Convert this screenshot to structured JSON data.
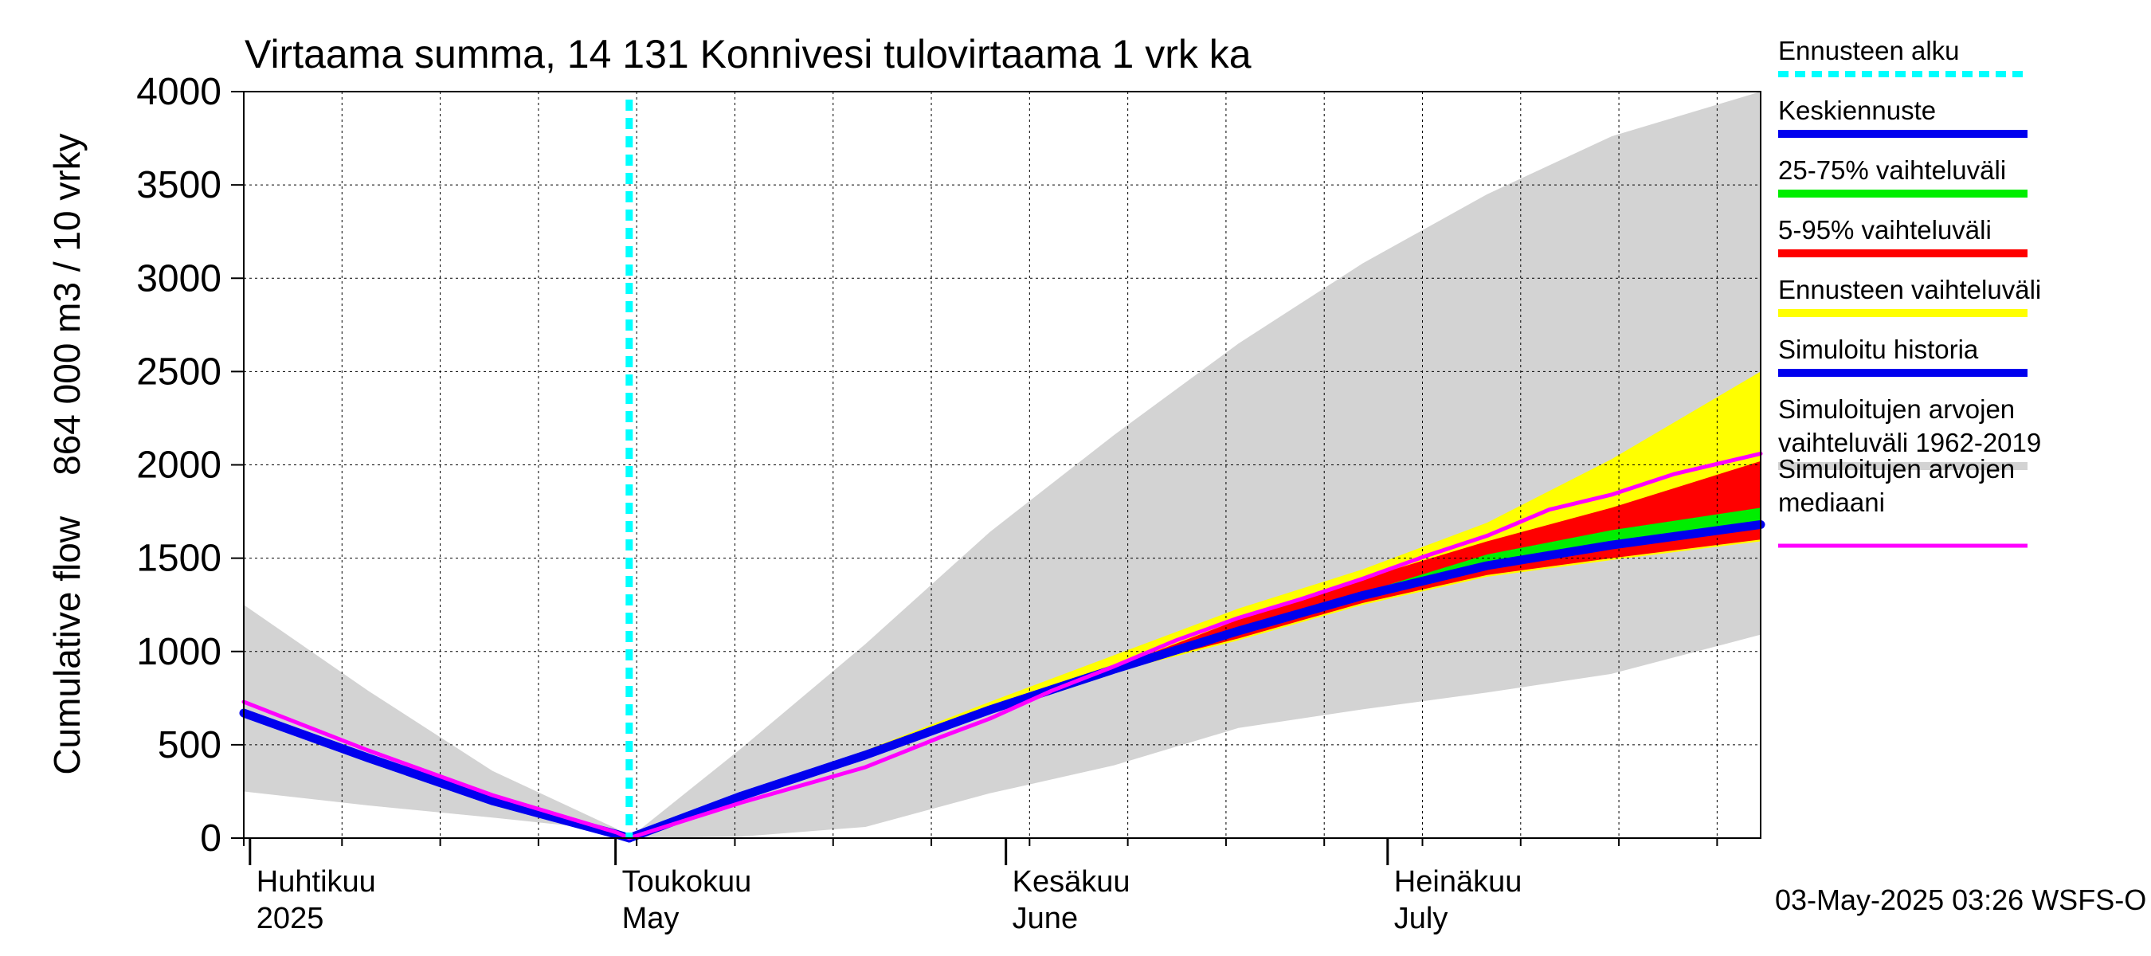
{
  "chart_data": {
    "type": "area",
    "title": "Virtaama summa, 14 131 Konnivesi tulovirtaama 1 vrk ka",
    "ylabel": "Cumulative flow    864 000 m3 / 10 vrky",
    "ylim": [
      0,
      4000
    ],
    "yticks": [
      0,
      500,
      1000,
      1500,
      2000,
      2500,
      3000,
      3500,
      4000
    ],
    "xlim_days": [
      0,
      122
    ],
    "x_unit": "days since 2025-03-25",
    "forecast_start_day": 31,
    "month_labels": [
      {
        "day": 0.5,
        "line1": "Huhtikuu",
        "line2": "2025"
      },
      {
        "day": 29.9,
        "line1": "Toukokuu",
        "line2": "May"
      },
      {
        "day": 61.3,
        "line1": "Kesäkuu",
        "line2": "June"
      },
      {
        "day": 92,
        "line1": "Heinäkuu",
        "line2": "July"
      }
    ],
    "series": [
      {
        "name": "Simuloitujen arvojen vaihteluväli 1962-2019",
        "kind": "band",
        "color": "#d3d3d3",
        "x": [
          0,
          10,
          20,
          30,
          31,
          40,
          50,
          60,
          70,
          80,
          90,
          100,
          110,
          122
        ],
        "low": [
          250,
          175,
          110,
          40,
          0,
          8,
          60,
          240,
          390,
          590,
          690,
          780,
          880,
          1090
        ],
        "high": [
          1250,
          790,
          360,
          50,
          0,
          480,
          1040,
          1640,
          2160,
          2650,
          3080,
          3450,
          3760,
          4000
        ]
      },
      {
        "name": "Ennusteen vaihteluväli",
        "kind": "band",
        "color": "#ffff00",
        "x": [
          31,
          40,
          50,
          60,
          70,
          80,
          90,
          100,
          110,
          122
        ],
        "low": [
          0,
          220,
          440,
          680,
          890,
          1060,
          1250,
          1400,
          1490,
          1590
        ],
        "high": [
          0,
          240,
          470,
          730,
          980,
          1230,
          1440,
          1690,
          2030,
          2500
        ]
      },
      {
        "name": "5-95% vaihteluväli",
        "kind": "band",
        "color": "#ff0000",
        "x": [
          31,
          40,
          50,
          60,
          70,
          80,
          90,
          100,
          110,
          122
        ],
        "low": [
          0,
          225,
          445,
          685,
          900,
          1070,
          1260,
          1410,
          1500,
          1600
        ],
        "high": [
          0,
          230,
          450,
          700,
          915,
          1170,
          1390,
          1590,
          1770,
          2020
        ]
      },
      {
        "name": "25-75% vaihteluväli",
        "kind": "band",
        "color": "#00ee00",
        "x": [
          31,
          40,
          50,
          60,
          70,
          80,
          90,
          100,
          110,
          122
        ],
        "low": [
          0,
          225,
          445,
          690,
          905,
          1110,
          1300,
          1470,
          1580,
          1660
        ],
        "high": [
          0,
          227,
          448,
          693,
          910,
          1125,
          1315,
          1520,
          1650,
          1770
        ]
      },
      {
        "name": "Simuloitujen arvojen mediaani",
        "kind": "line",
        "color": "#ff00ff",
        "x": [
          0,
          10,
          20,
          30,
          31,
          40,
          50,
          56,
          60,
          65,
          70,
          75,
          80,
          85,
          90,
          95,
          100,
          105,
          110,
          115,
          122
        ],
        "y": [
          730,
          470,
          230,
          30,
          0,
          190,
          380,
          540,
          640,
          790,
          920,
          1060,
          1180,
          1280,
          1390,
          1510,
          1620,
          1760,
          1840,
          1950,
          2060
        ]
      },
      {
        "name": "Simuloitu historia",
        "kind": "line",
        "color": "#0000ee",
        "x": [
          0,
          10,
          20,
          30,
          31
        ],
        "y": [
          670,
          430,
          200,
          20,
          0
        ]
      },
      {
        "name": "Keskiennuste",
        "kind": "line",
        "color": "#0000ee",
        "x": [
          31,
          40,
          50,
          60,
          70,
          80,
          90,
          100,
          110,
          122
        ],
        "y": [
          0,
          225,
          445,
          687,
          905,
          1110,
          1300,
          1460,
          1570,
          1680
        ]
      }
    ]
  },
  "legend": [
    {
      "line1": "Ennusteen alku",
      "line2": "",
      "color": "#00ffff",
      "style": "dotted"
    },
    {
      "line1": "Keskiennuste",
      "line2": "",
      "color": "#0000ee",
      "style": "solid"
    },
    {
      "line1": "25-75% vaihteluväli",
      "line2": "",
      "color": "#00ee00",
      "style": "solid"
    },
    {
      "line1": "5-95% vaihteluväli",
      "line2": "",
      "color": "#ff0000",
      "style": "solid"
    },
    {
      "line1": "Ennusteen vaihteluväli",
      "line2": "",
      "color": "#ffff00",
      "style": "solid"
    },
    {
      "line1": "Simuloitu historia",
      "line2": "",
      "color": "#0000ee",
      "style": "solid"
    },
    {
      "line1": "Simuloitujen arvojen",
      "line2": "vaihteluväli 1962-2019",
      "color": "#d3d3d3",
      "style": "solid"
    },
    {
      "line1": "Simuloitujen arvojen",
      "line2": "mediaani",
      "color": "#ff00ff",
      "style": "solid"
    }
  ],
  "footer": "03-May-2025 03:26 WSFS-O"
}
